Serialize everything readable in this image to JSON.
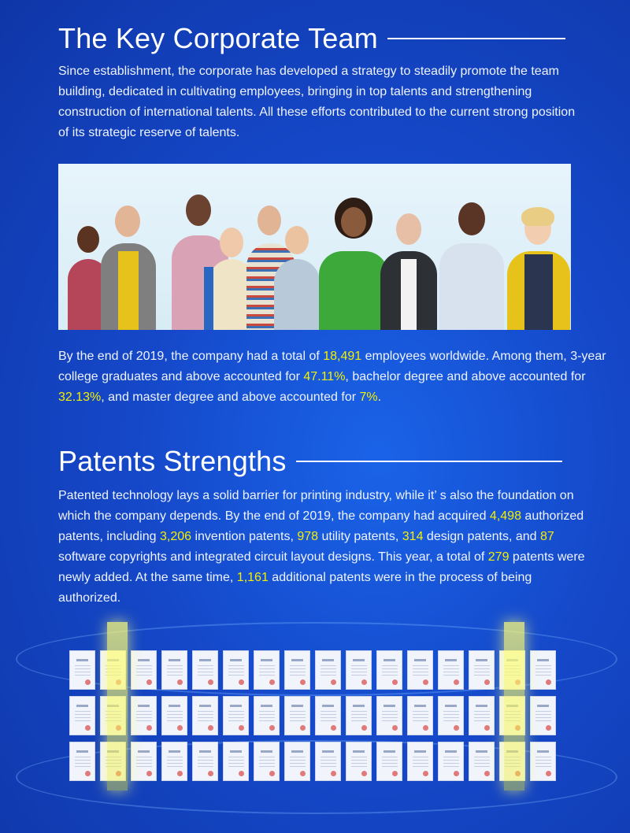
{
  "team": {
    "title": "The Key Corporate Team",
    "intro": "Since establishment, the corporate has developed a strategy to steadily promote the team building, dedicated in cultivating employees, bringing in top talents and strengthening construction of international talents. All these efforts contributed to the current strong position of its strategic reserve of talents.",
    "stats": {
      "t1": "By the end of 2019, the company had a total of ",
      "employees": "18,491",
      "t2": " employees worldwide.  Among them, 3-year college graduates and above accounted for ",
      "college_pct": "47.11%",
      "t3": ", bachelor degree and above accounted for ",
      "bachelor_pct": "32.13%",
      "t4": ", and master degree and above accounted for ",
      "master_pct": "7%",
      "t5": "."
    }
  },
  "patents": {
    "title": "Patents Strengths",
    "p1": "Patented technology lays a solid barrier for printing industry, while it’ s also the foundation on which the company depends. By the end of 2019, the company had acquired ",
    "authorized": "4,498",
    "p2": " authorized patents, including ",
    "invention": "3,206",
    "p3": " invention patents, ",
    "utility": "978",
    "p4": " utility patents, ",
    "design": "314",
    "p5": " design patents, and ",
    "software": "87",
    "p6": " software copyrights and integrated circuit layout designs. This year, a total of ",
    "new_added": "279",
    "p7": " patents were newly added. At the same time, ",
    "pending": "1,161",
    "p8": " additional patents were in the process of being authorized."
  },
  "colors": {
    "highlight": "#f4f000",
    "background": "#1548c9"
  }
}
